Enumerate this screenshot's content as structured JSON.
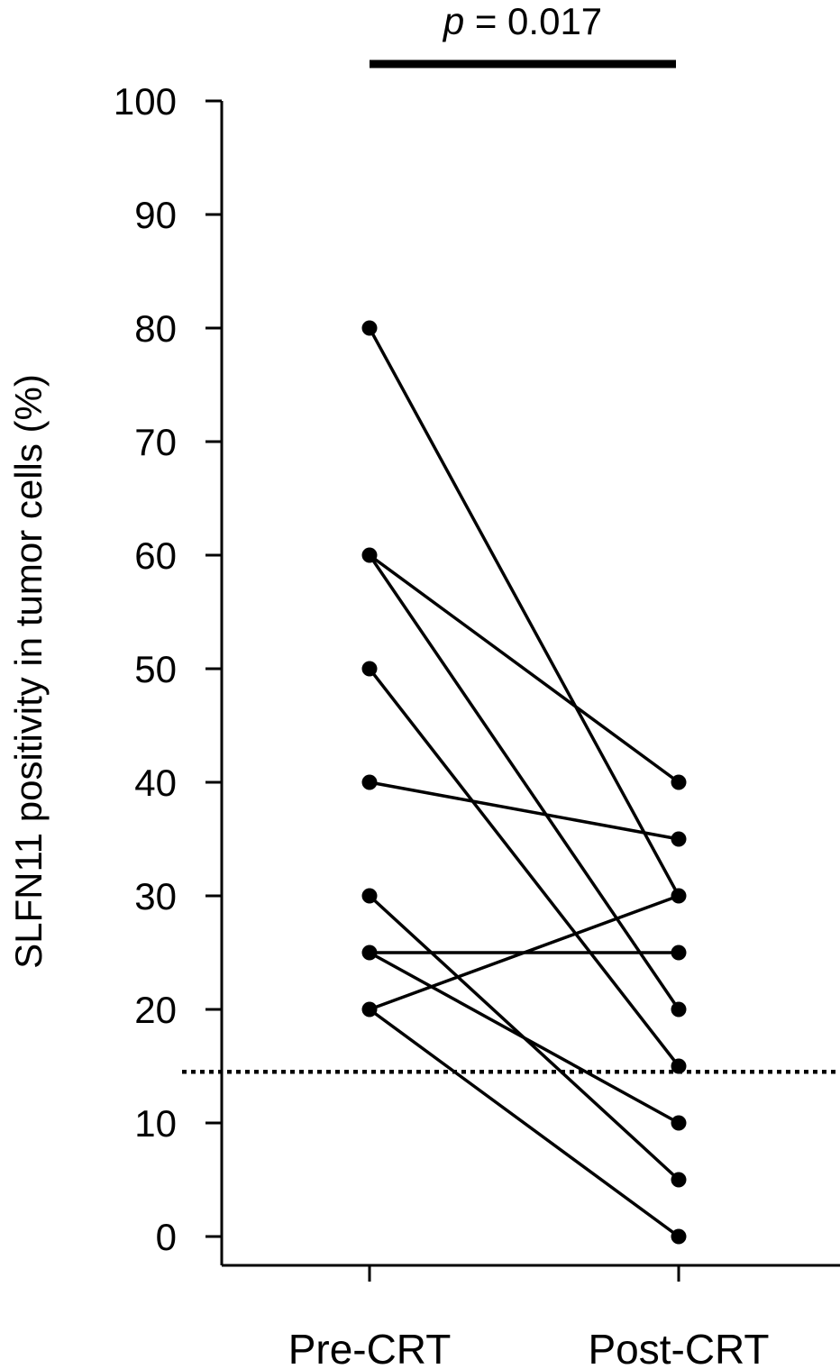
{
  "chart_data": {
    "type": "line",
    "categories": [
      "Pre-CRT",
      "Post-CRT"
    ],
    "ylabel": "SLFN11 positivity in tumor cells (%)",
    "ylim": [
      0,
      100
    ],
    "yticks": [
      "0",
      "10",
      "20",
      "30",
      "40",
      "50",
      "60",
      "70",
      "80",
      "90",
      "100"
    ],
    "cutoff": 14.5,
    "significance": {
      "p_italic": "p",
      "p_rest": " = 0.017"
    },
    "pairs": [
      {
        "pre": 80,
        "post": 30
      },
      {
        "pre": 60,
        "post": 40
      },
      {
        "pre": 60,
        "post": 20
      },
      {
        "pre": 50,
        "post": 15
      },
      {
        "pre": 40,
        "post": 35
      },
      {
        "pre": 30,
        "post": 5
      },
      {
        "pre": 25,
        "post": 25
      },
      {
        "pre": 25,
        "post": 10
      },
      {
        "pre": 20,
        "post": 30
      },
      {
        "pre": 20,
        "post": 0
      }
    ]
  }
}
